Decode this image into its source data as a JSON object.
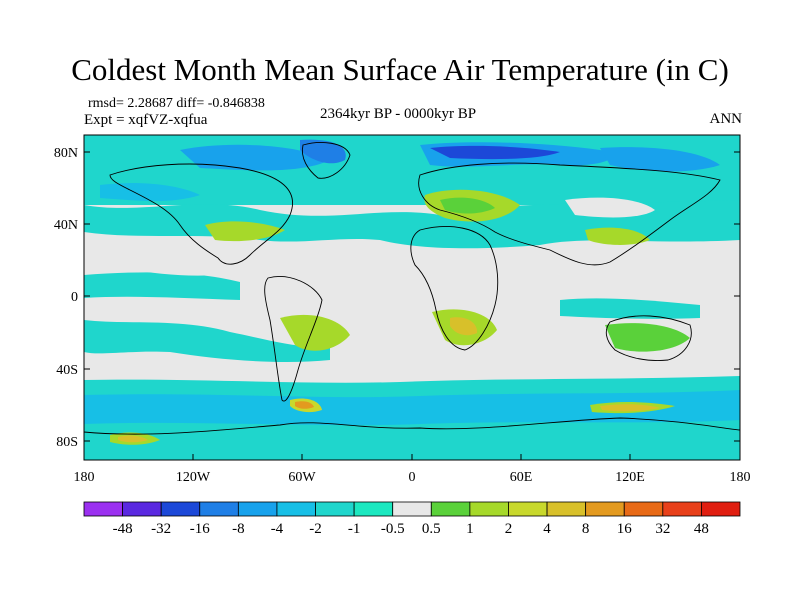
{
  "title": "Coldest Month Mean Surface Air Temperature (in C)",
  "stats": "rmsd= 2.28687 diff= -0.846838",
  "experiment": "Expt = xqfVZ-xqfua",
  "period": "2364kyr BP - 0000kyr BP",
  "season": "ANN",
  "axes": {
    "lat_ticks": [
      "80N",
      "40N",
      "0",
      "40S",
      "80S"
    ],
    "lon_ticks": [
      "180",
      "120W",
      "60W",
      "0",
      "60E",
      "120E",
      "180"
    ]
  },
  "colorbar": {
    "labels": [
      "-48",
      "-32",
      "-16",
      "-8",
      "-4",
      "-2",
      "-1",
      "-0.5",
      "0.5",
      "1",
      "2",
      "4",
      "8",
      "16",
      "32",
      "48"
    ],
    "colors": [
      "#9b30f0",
      "#5a28e0",
      "#1c48d8",
      "#1f7fe6",
      "#18a2ec",
      "#17bfe6",
      "#1fd6cc",
      "#1ce8c0",
      "#e8e8e8",
      "#5ad13a",
      "#a6d92a",
      "#c8d82c",
      "#d8c02a",
      "#e39a1f",
      "#e86a16",
      "#e8401a",
      "#e01e10"
    ]
  }
}
